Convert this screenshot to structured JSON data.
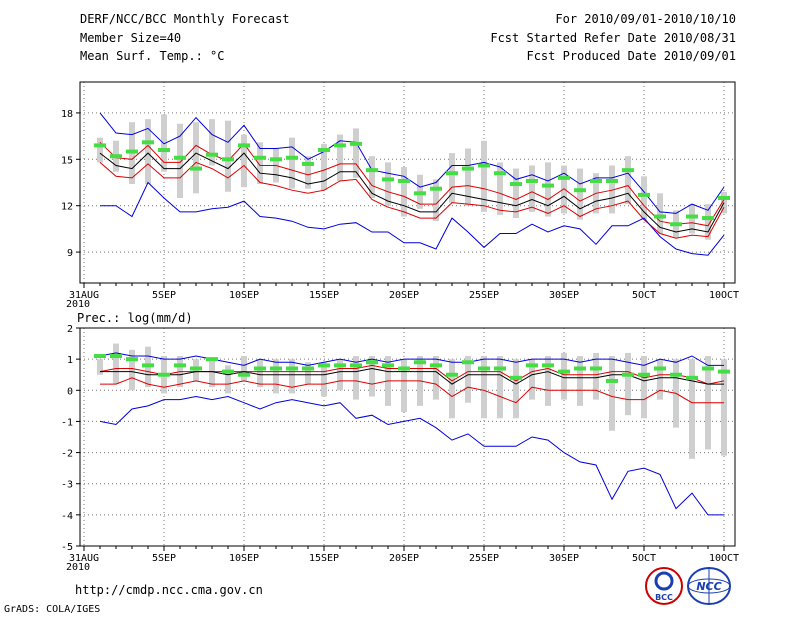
{
  "header": {
    "title": "DERF/NCC/BCC Monthly Forecast",
    "member_size": "Member Size=40",
    "variable": "Mean Surf. Temp.: °C",
    "period": "For 2010/09/01-2010/10/10",
    "started": "Fcst Started Refer Date 2010/08/31",
    "produced": "Fcst Produced Date 2010/09/01"
  },
  "footer": {
    "url": "http://cmdp.ncc.cma.gov.cn",
    "credit": "GrADS: COLA/IGES",
    "logos": [
      {
        "name": "bcc-logo",
        "text": "BCC"
      },
      {
        "name": "ncc-logo",
        "text": "NCC"
      }
    ]
  },
  "colors": {
    "max_line": "#0000dd",
    "mean_line": "#000000",
    "band_line": "#dd0000",
    "bar": "#cfcfcf",
    "obs": "#44dd44",
    "grid": "#777777"
  },
  "chart_data": [
    {
      "type": "line",
      "title": "Mean Surf. Temp.: °C",
      "xlabel": "",
      "ylabel": "",
      "ylim": [
        7,
        20
      ],
      "yticks": [
        9,
        12,
        15,
        18
      ],
      "xticks": [
        {
          "day": 0,
          "label": "31AUG"
        },
        {
          "day": 5,
          "label": "5SEP"
        },
        {
          "day": 10,
          "label": "10SEP"
        },
        {
          "day": 15,
          "label": "15SEP"
        },
        {
          "day": 20,
          "label": "20SEP"
        },
        {
          "day": 25,
          "label": "25SEP"
        },
        {
          "day": 30,
          "label": "30SEP"
        },
        {
          "day": 35,
          "label": "5OCT"
        },
        {
          "day": 40,
          "label": "10OCT"
        }
      ],
      "x_sub_label": "2010",
      "x": [
        1,
        2,
        3,
        4,
        5,
        6,
        7,
        8,
        9,
        10,
        11,
        12,
        13,
        14,
        15,
        16,
        17,
        18,
        19,
        20,
        21,
        22,
        23,
        24,
        25,
        26,
        27,
        28,
        29,
        30,
        31,
        32,
        33,
        34,
        35,
        36,
        37,
        38,
        39,
        40
      ],
      "series": [
        {
          "name": "max",
          "values": [
            18.0,
            16.7,
            16.6,
            17.0,
            16.0,
            16.5,
            17.7,
            16.6,
            16.1,
            17.2,
            15.7,
            15.7,
            15.8,
            15.0,
            15.5,
            16.2,
            16.1,
            14.3,
            14.1,
            13.9,
            13.2,
            13.5,
            14.6,
            14.6,
            14.8,
            14.5,
            13.7,
            14.0,
            13.6,
            14.1,
            13.4,
            13.8,
            13.8,
            14.1,
            12.9,
            11.6,
            11.5,
            12.1,
            11.7,
            13.2
          ]
        },
        {
          "name": "upper",
          "values": [
            16.1,
            15.1,
            15.0,
            15.9,
            14.8,
            14.8,
            15.9,
            15.3,
            14.9,
            16.0,
            14.6,
            14.6,
            14.3,
            14.0,
            14.3,
            14.7,
            14.7,
            13.3,
            12.9,
            12.6,
            12.1,
            12.1,
            13.2,
            13.3,
            13.1,
            12.8,
            12.4,
            12.9,
            12.4,
            13.1,
            12.3,
            12.8,
            13.0,
            13.3,
            12.0,
            11.0,
            10.8,
            10.9,
            10.7,
            12.4
          ]
        },
        {
          "name": "mean",
          "values": [
            15.4,
            14.6,
            14.4,
            15.4,
            14.4,
            14.4,
            15.4,
            14.9,
            14.4,
            15.4,
            14.1,
            14.0,
            13.8,
            13.4,
            13.6,
            14.2,
            14.2,
            12.8,
            12.3,
            12.0,
            11.6,
            11.6,
            12.8,
            12.6,
            12.4,
            12.2,
            12.0,
            12.4,
            12.0,
            12.6,
            11.8,
            12.3,
            12.5,
            12.8,
            11.6,
            10.6,
            10.3,
            10.5,
            10.3,
            12.2
          ]
        },
        {
          "name": "lower",
          "values": [
            14.8,
            13.9,
            13.8,
            14.7,
            13.8,
            13.8,
            14.8,
            14.4,
            13.8,
            14.6,
            13.5,
            13.3,
            13.0,
            12.8,
            13.0,
            13.6,
            13.7,
            12.4,
            11.9,
            11.6,
            11.2,
            11.2,
            12.2,
            12.1,
            12.0,
            11.7,
            11.6,
            11.9,
            11.5,
            12.0,
            11.3,
            11.8,
            12.0,
            12.3,
            11.1,
            10.2,
            9.9,
            10.1,
            10.0,
            11.9
          ]
        },
        {
          "name": "min",
          "values": [
            12.0,
            12.0,
            11.3,
            13.5,
            12.5,
            11.6,
            11.6,
            11.8,
            11.9,
            12.3,
            11.3,
            11.2,
            11.0,
            10.6,
            10.5,
            10.8,
            10.9,
            10.3,
            10.3,
            9.6,
            9.6,
            9.2,
            11.2,
            10.3,
            9.3,
            10.2,
            10.2,
            10.8,
            10.3,
            10.7,
            10.5,
            9.5,
            10.7,
            10.7,
            11.2,
            10.0,
            9.2,
            8.9,
            8.8,
            10.1
          ]
        },
        {
          "name": "obs",
          "values": [
            15.9,
            15.2,
            15.5,
            16.1,
            15.6,
            15.1,
            14.4,
            15.3,
            15.0,
            15.9,
            15.1,
            15.0,
            15.1,
            14.7,
            15.6,
            15.9,
            16.0,
            14.3,
            13.7,
            13.6,
            12.8,
            13.1,
            14.1,
            14.4,
            14.6,
            14.1,
            13.4,
            13.6,
            13.3,
            13.8,
            13.0,
            13.6,
            13.6,
            14.3,
            12.7,
            11.3,
            10.8,
            11.3,
            11.2,
            12.5
          ]
        }
      ],
      "bars": [
        [
          14.8,
          16.4
        ],
        [
          14.2,
          16.2
        ],
        [
          13.4,
          17.4
        ],
        [
          13.4,
          17.6
        ],
        [
          14.2,
          17.9
        ],
        [
          12.5,
          17.3
        ],
        [
          12.8,
          17.4
        ],
        [
          14.6,
          17.6
        ],
        [
          12.9,
          17.5
        ],
        [
          13.2,
          16.6
        ],
        [
          13.4,
          16.1
        ],
        [
          13.5,
          15.7
        ],
        [
          13.1,
          16.4
        ],
        [
          13.1,
          15.2
        ],
        [
          13.0,
          16.0
        ],
        [
          13.6,
          16.6
        ],
        [
          13.8,
          17.0
        ],
        [
          12.5,
          15.2
        ],
        [
          12.0,
          14.8
        ],
        [
          11.3,
          14.5
        ],
        [
          11.8,
          14.0
        ],
        [
          11.0,
          13.7
        ],
        [
          12.2,
          15.4
        ],
        [
          12.0,
          15.7
        ],
        [
          11.6,
          16.2
        ],
        [
          11.4,
          14.8
        ],
        [
          11.2,
          14.4
        ],
        [
          11.6,
          14.6
        ],
        [
          11.3,
          14.8
        ],
        [
          11.5,
          14.6
        ],
        [
          11.1,
          14.4
        ],
        [
          11.5,
          14.1
        ],
        [
          11.5,
          14.6
        ],
        [
          12.1,
          15.2
        ],
        [
          11.1,
          13.9
        ],
        [
          10.2,
          12.8
        ],
        [
          9.9,
          11.7
        ],
        [
          10.2,
          12.1
        ],
        [
          9.8,
          12.1
        ],
        [
          11.5,
          12.9
        ]
      ]
    },
    {
      "type": "line",
      "title": "Prec.: log(mm/d)",
      "xlabel": "",
      "ylabel": "",
      "ylim": [
        -5,
        2
      ],
      "yticks": [
        -5,
        -4,
        -3,
        -2,
        -1,
        0,
        1,
        2
      ],
      "xticks": [
        {
          "day": 0,
          "label": "31AUG"
        },
        {
          "day": 5,
          "label": "5SEP"
        },
        {
          "day": 10,
          "label": "10SEP"
        },
        {
          "day": 15,
          "label": "15SEP"
        },
        {
          "day": 20,
          "label": "20SEP"
        },
        {
          "day": 25,
          "label": "25SEP"
        },
        {
          "day": 30,
          "label": "30SEP"
        },
        {
          "day": 35,
          "label": "5OCT"
        },
        {
          "day": 40,
          "label": "10OCT"
        }
      ],
      "x_sub_label": "2010",
      "x": [
        1,
        2,
        3,
        4,
        5,
        6,
        7,
        8,
        9,
        10,
        11,
        12,
        13,
        14,
        15,
        16,
        17,
        18,
        19,
        20,
        21,
        22,
        23,
        24,
        25,
        26,
        27,
        28,
        29,
        30,
        31,
        32,
        33,
        34,
        35,
        36,
        37,
        38,
        39,
        40
      ],
      "series": [
        {
          "name": "max",
          "values": [
            1.1,
            1.2,
            1.1,
            1.1,
            1.0,
            1.0,
            1.1,
            1.0,
            0.9,
            0.8,
            1.0,
            0.9,
            0.9,
            0.8,
            0.9,
            1.0,
            0.9,
            1.0,
            0.9,
            1.0,
            1.0,
            1.0,
            0.9,
            0.9,
            1.0,
            1.0,
            0.9,
            1.0,
            1.0,
            1.0,
            0.9,
            1.0,
            1.0,
            0.9,
            0.8,
            1.0,
            0.9,
            1.1,
            0.8,
            0.8
          ]
        },
        {
          "name": "upper",
          "values": [
            0.6,
            0.7,
            0.7,
            0.6,
            0.5,
            0.6,
            0.6,
            0.6,
            0.6,
            0.6,
            0.6,
            0.6,
            0.6,
            0.6,
            0.6,
            0.7,
            0.7,
            0.8,
            0.7,
            0.7,
            0.7,
            0.7,
            0.3,
            0.6,
            0.6,
            0.6,
            0.3,
            0.6,
            0.7,
            0.5,
            0.5,
            0.5,
            0.6,
            0.6,
            0.4,
            0.5,
            0.5,
            0.4,
            0.2,
            0.3
          ]
        },
        {
          "name": "mean",
          "values": [
            0.6,
            0.6,
            0.6,
            0.5,
            0.5,
            0.5,
            0.6,
            0.6,
            0.5,
            0.6,
            0.5,
            0.5,
            0.5,
            0.5,
            0.5,
            0.6,
            0.6,
            0.7,
            0.6,
            0.6,
            0.6,
            0.6,
            0.2,
            0.5,
            0.5,
            0.5,
            0.2,
            0.5,
            0.6,
            0.4,
            0.4,
            0.4,
            0.5,
            0.5,
            0.3,
            0.4,
            0.4,
            0.3,
            0.2,
            0.2
          ]
        },
        {
          "name": "lower",
          "values": [
            0.2,
            0.2,
            0.4,
            0.2,
            0.1,
            0.2,
            0.3,
            0.2,
            0.2,
            0.3,
            0.2,
            0.2,
            0.1,
            0.2,
            0.2,
            0.3,
            0.3,
            0.2,
            0.3,
            0.3,
            0.3,
            0.2,
            -0.2,
            0.1,
            0.0,
            -0.2,
            -0.4,
            0.1,
            0.0,
            0.0,
            0.0,
            0.0,
            -0.2,
            -0.3,
            -0.3,
            0.0,
            -0.1,
            -0.4,
            -0.4,
            -0.4
          ]
        },
        {
          "name": "min",
          "values": [
            -1.0,
            -1.1,
            -0.6,
            -0.5,
            -0.3,
            -0.3,
            -0.2,
            -0.3,
            -0.2,
            -0.4,
            -0.6,
            -0.4,
            -0.3,
            -0.4,
            -0.5,
            -0.4,
            -0.9,
            -0.8,
            -1.1,
            -1.0,
            -0.9,
            -1.2,
            -1.6,
            -1.4,
            -1.8,
            -1.8,
            -1.8,
            -1.5,
            -1.6,
            -2.0,
            -2.3,
            -2.4,
            -3.5,
            -2.6,
            -2.5,
            -2.7,
            -3.8,
            -3.3,
            -4.0,
            -4.0
          ]
        },
        {
          "name": "obs",
          "values": [
            1.1,
            1.1,
            1.0,
            0.8,
            0.5,
            0.8,
            0.7,
            1.0,
            0.6,
            0.5,
            0.7,
            0.7,
            0.7,
            0.7,
            0.8,
            0.8,
            0.8,
            0.9,
            0.8,
            0.7,
            0.9,
            0.8,
            0.5,
            0.9,
            0.7,
            0.7,
            0.4,
            0.8,
            0.8,
            0.6,
            0.7,
            0.7,
            0.3,
            0.5,
            0.5,
            0.7,
            0.5,
            0.4,
            0.7,
            0.6
          ]
        }
      ],
      "bars": [
        [
          0.5,
          1.0
        ],
        [
          0.2,
          1.5
        ],
        [
          0.0,
          1.3
        ],
        [
          0.1,
          1.4
        ],
        [
          -0.1,
          1.1
        ],
        [
          0.1,
          1.1
        ],
        [
          0.3,
          1.0
        ],
        [
          0.1,
          1.0
        ],
        [
          -0.1,
          0.8
        ],
        [
          0.3,
          1.1
        ],
        [
          0.1,
          1.0
        ],
        [
          -0.1,
          1.0
        ],
        [
          -0.1,
          1.0
        ],
        [
          0.2,
          0.9
        ],
        [
          -0.2,
          0.9
        ],
        [
          0.0,
          1.0
        ],
        [
          -0.3,
          1.1
        ],
        [
          -0.2,
          1.1
        ],
        [
          -0.5,
          1.1
        ],
        [
          -0.7,
          1.0
        ],
        [
          -0.5,
          1.1
        ],
        [
          -0.3,
          1.1
        ],
        [
          -0.9,
          1.0
        ],
        [
          -0.4,
          1.1
        ],
        [
          -0.9,
          1.1
        ],
        [
          -0.9,
          1.1
        ],
        [
          -0.9,
          1.0
        ],
        [
          -0.3,
          1.0
        ],
        [
          -0.5,
          1.1
        ],
        [
          -0.3,
          1.2
        ],
        [
          -0.5,
          1.1
        ],
        [
          -0.3,
          1.2
        ],
        [
          -1.3,
          1.1
        ],
        [
          -0.8,
          1.2
        ],
        [
          -0.9,
          1.1
        ],
        [
          -0.3,
          1.0
        ],
        [
          -1.2,
          1.0
        ],
        [
          -2.2,
          1.0
        ],
        [
          -1.9,
          1.1
        ],
        [
          -2.1,
          1.0
        ]
      ]
    }
  ]
}
